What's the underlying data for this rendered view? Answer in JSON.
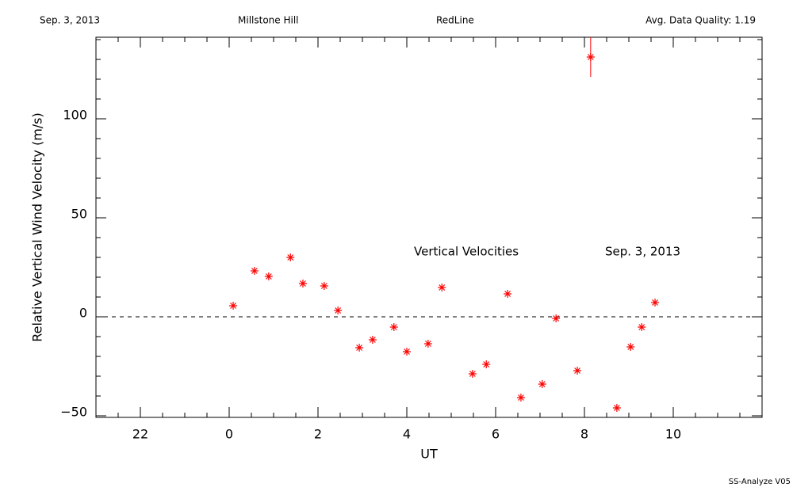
{
  "chart_data": {
    "type": "scatter",
    "header": [
      "Sep. 3, 2013",
      "Millstone Hill",
      "RedLine",
      "Avg. Data Quality: 1.19"
    ],
    "annotations": [
      "Vertical Velocities",
      "Sep. 3, 2013"
    ],
    "footer": "SS-Analyze V05",
    "x_label": "UT",
    "y_label": "Relative Vertical Wind Velocity (m/s)",
    "color": "#ff0000",
    "x": [
      0.09,
      0.57,
      0.89,
      1.38,
      1.66,
      2.14,
      2.45,
      2.93,
      3.23,
      3.71,
      4.0,
      4.48,
      4.79,
      5.48,
      5.79,
      6.27,
      6.57,
      7.05,
      7.36,
      7.84,
      8.14,
      8.73,
      9.04,
      9.29,
      9.59
    ],
    "values": [
      5.6,
      23.2,
      20.4,
      30,
      16.8,
      15.6,
      3.2,
      -15.6,
      -11.6,
      -5.2,
      -17.6,
      -13.6,
      14.8,
      -28.8,
      -24,
      11.6,
      -40.8,
      -34,
      -0.8,
      -27.2,
      131.2,
      -46,
      -15.2,
      -5.2,
      7.2
    ],
    "errors": [
      null,
      null,
      null,
      null,
      null,
      null,
      null,
      null,
      null,
      null,
      null,
      null,
      null,
      null,
      null,
      null,
      null,
      null,
      null,
      null,
      10,
      null,
      null,
      null,
      null
    ],
    "reference_line": 0,
    "xlim": [
      -3,
      12
    ],
    "xticks": [
      {
        "value": -2,
        "label": "22"
      },
      0,
      2,
      4,
      6,
      8,
      10
    ],
    "x_minor_step": 0.5,
    "ylim": [
      -50.8,
      141.2
    ],
    "yticks": [
      {
        "value": -50,
        "label": "−50"
      },
      0,
      50,
      100
    ],
    "y_minor_step": 10
  }
}
